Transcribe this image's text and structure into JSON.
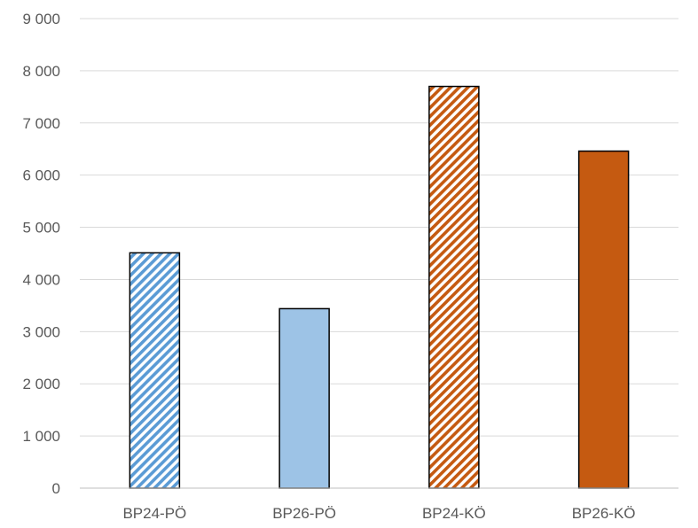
{
  "chart_data": {
    "type": "bar",
    "title": "",
    "xlabel": "",
    "ylabel": "",
    "categories": [
      "BP24-PÖ",
      "BP26-PÖ",
      "BP24-KÖ",
      "BP26-KÖ"
    ],
    "values": [
      4510,
      3440,
      7700,
      6460
    ],
    "ylim": [
      0,
      9000
    ],
    "yticks": [
      0,
      1000,
      2000,
      3000,
      4000,
      5000,
      6000,
      7000,
      8000,
      9000
    ],
    "ytick_labels": [
      "0",
      "1 000",
      "2 000",
      "3 000",
      "4 000",
      "5 000",
      "6 000",
      "7 000",
      "8 000",
      "9 000"
    ],
    "grid": true,
    "legend": "none",
    "bar_styles": [
      {
        "fill": "#5b9bd5",
        "pattern": "diagonal-stripes"
      },
      {
        "fill": "#9dc3e6",
        "pattern": "solid"
      },
      {
        "fill": "#c55a11",
        "pattern": "diagonal-stripes"
      },
      {
        "fill": "#c55a11",
        "pattern": "solid"
      }
    ]
  }
}
